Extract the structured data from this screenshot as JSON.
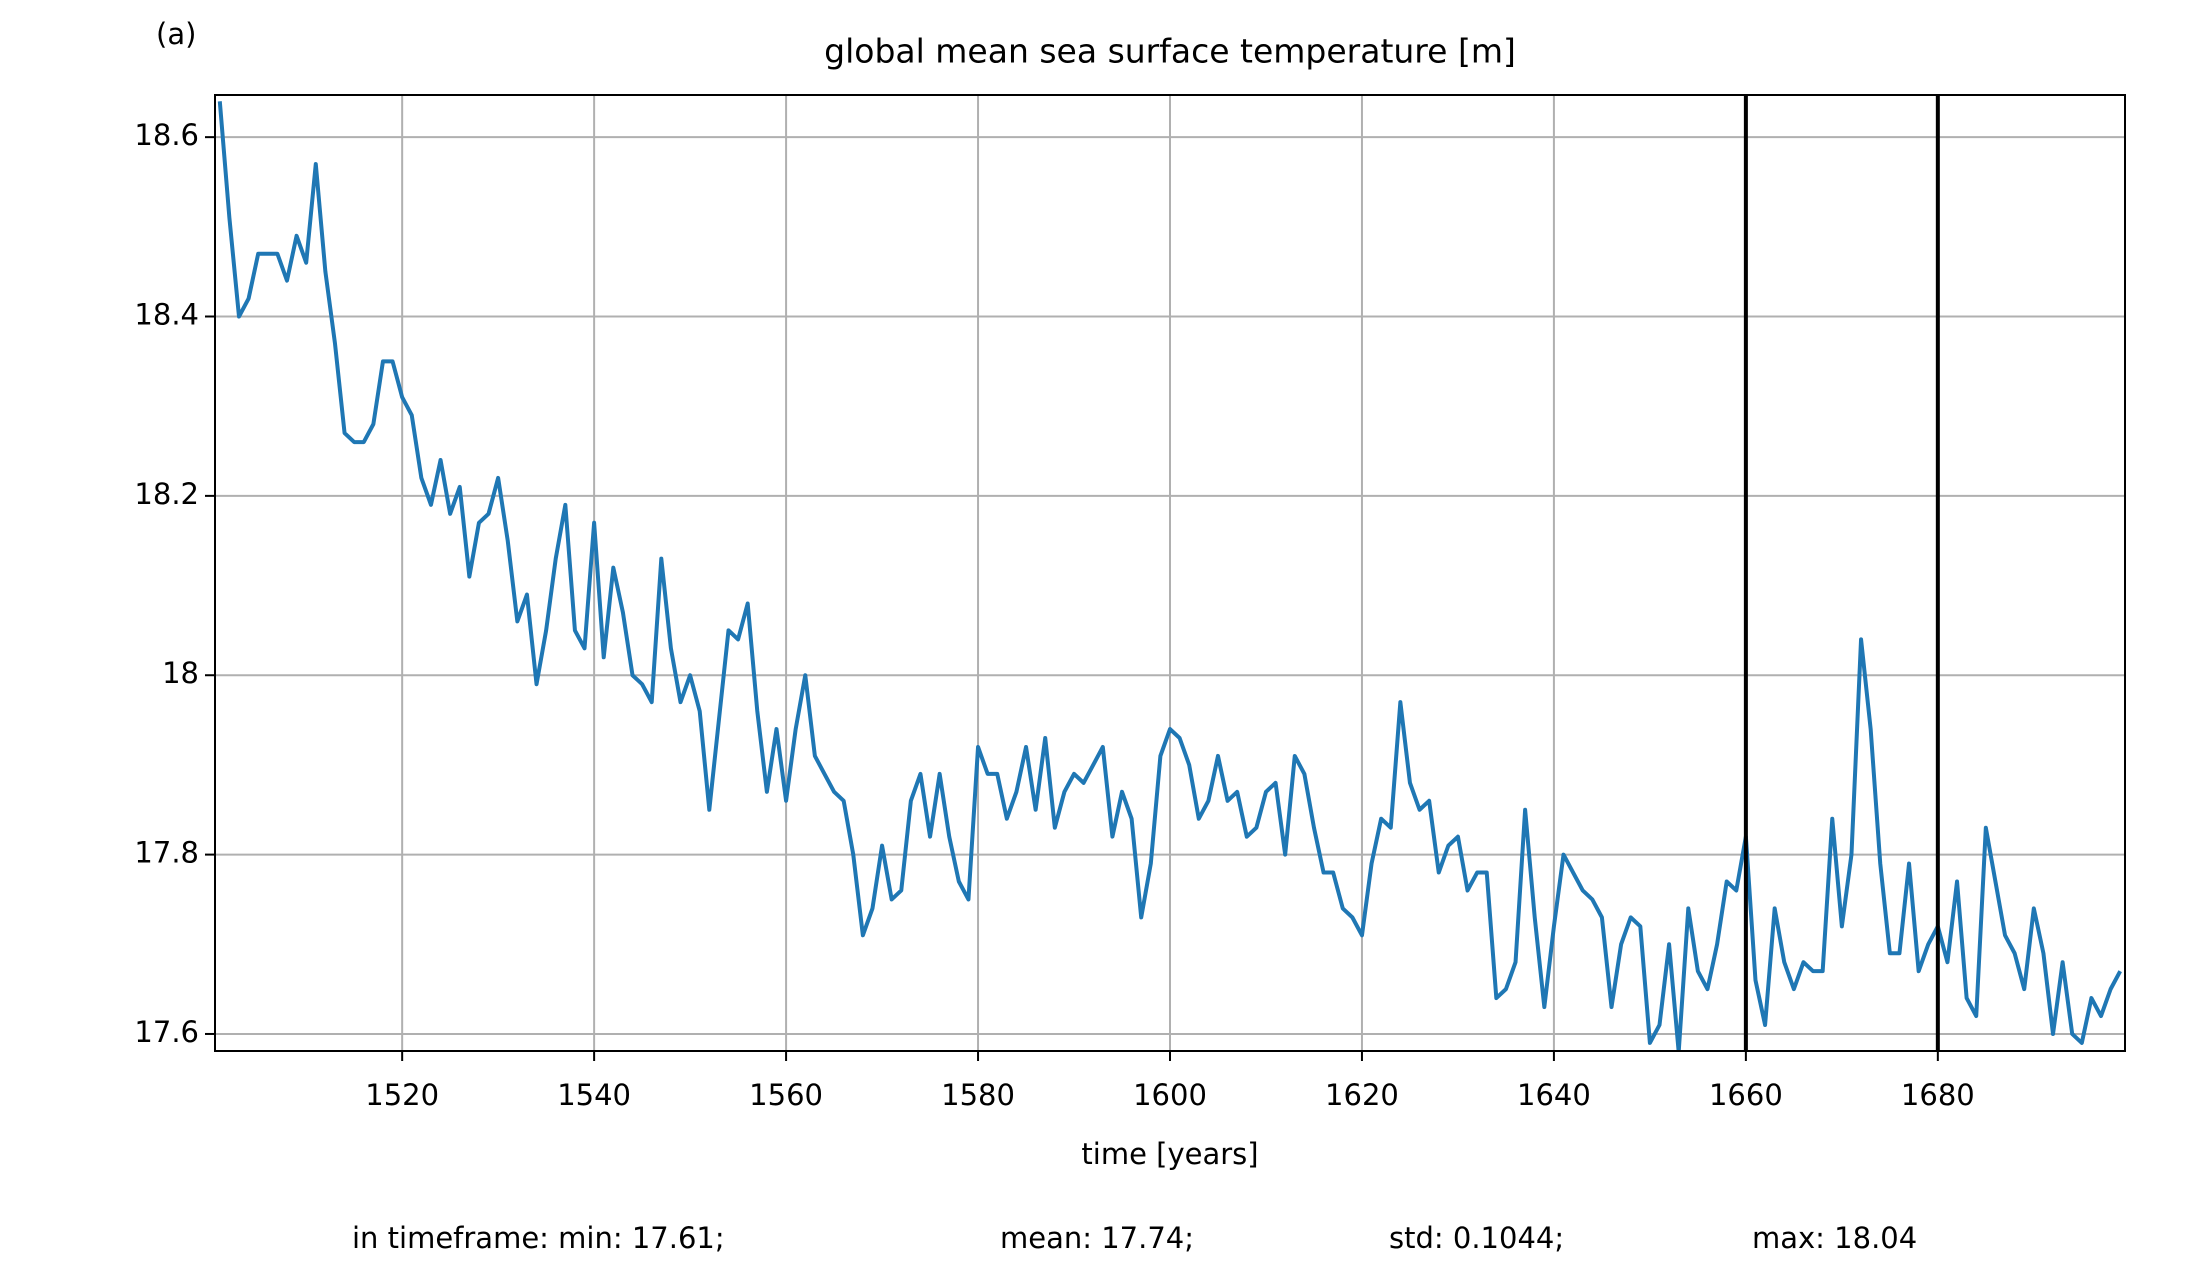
{
  "chart_data": {
    "type": "line",
    "panel_label": "(a)",
    "title": "global mean sea surface temperature [m]",
    "x_label": "time [years]",
    "stats": [
      "in timeframe: min: 17.61;",
      "mean: 17.74;",
      "std: 0.1044;",
      "max: 18.04"
    ],
    "x": [
      1501,
      1502,
      1503,
      1504,
      1505,
      1506,
      1507,
      1508,
      1509,
      1510,
      1511,
      1512,
      1513,
      1514,
      1515,
      1516,
      1517,
      1518,
      1519,
      1520,
      1521,
      1522,
      1523,
      1524,
      1525,
      1526,
      1527,
      1528,
      1529,
      1530,
      1531,
      1532,
      1533,
      1534,
      1535,
      1536,
      1537,
      1538,
      1539,
      1540,
      1541,
      1542,
      1543,
      1544,
      1545,
      1546,
      1547,
      1548,
      1549,
      1550,
      1551,
      1552,
      1553,
      1554,
      1555,
      1556,
      1557,
      1558,
      1559,
      1560,
      1561,
      1562,
      1563,
      1564,
      1565,
      1566,
      1567,
      1568,
      1569,
      1570,
      1571,
      1572,
      1573,
      1574,
      1575,
      1576,
      1577,
      1578,
      1579,
      1580,
      1581,
      1582,
      1583,
      1584,
      1585,
      1586,
      1587,
      1588,
      1589,
      1590,
      1591,
      1592,
      1593,
      1594,
      1595,
      1596,
      1597,
      1598,
      1599,
      1600,
      1601,
      1602,
      1603,
      1604,
      1605,
      1606,
      1607,
      1608,
      1609,
      1610,
      1611,
      1612,
      1613,
      1614,
      1615,
      1616,
      1617,
      1618,
      1619,
      1620,
      1621,
      1622,
      1623,
      1624,
      1625,
      1626,
      1627,
      1628,
      1629,
      1630,
      1631,
      1632,
      1633,
      1634,
      1635,
      1636,
      1637,
      1638,
      1639,
      1640,
      1641,
      1642,
      1643,
      1644,
      1645,
      1646,
      1647,
      1648,
      1649,
      1650,
      1651,
      1652,
      1653,
      1654,
      1655,
      1656,
      1657,
      1658,
      1659,
      1660,
      1661,
      1662,
      1663,
      1664,
      1665,
      1666,
      1667,
      1668,
      1669,
      1670,
      1671,
      1672,
      1673,
      1674,
      1675,
      1676,
      1677,
      1678,
      1679,
      1680,
      1681,
      1682,
      1683,
      1684,
      1685,
      1686,
      1687,
      1688,
      1689,
      1690,
      1691,
      1692,
      1693,
      1694,
      1695,
      1696,
      1697,
      1698,
      1699
    ],
    "series": [
      {
        "name": "global mean sea surface temperature",
        "color": "#1f77b4",
        "values": [
          18.64,
          18.51,
          18.4,
          18.42,
          18.47,
          18.47,
          18.47,
          18.44,
          18.49,
          18.46,
          18.57,
          18.45,
          18.37,
          18.27,
          18.26,
          18.26,
          18.28,
          18.35,
          18.35,
          18.31,
          18.29,
          18.22,
          18.19,
          18.24,
          18.18,
          18.21,
          18.11,
          18.17,
          18.18,
          18.22,
          18.15,
          18.06,
          18.09,
          17.99,
          18.05,
          18.13,
          18.19,
          18.05,
          18.03,
          18.17,
          18.02,
          18.12,
          18.07,
          18.0,
          17.99,
          17.97,
          18.13,
          18.03,
          17.97,
          18.0,
          17.96,
          17.85,
          17.95,
          18.05,
          18.04,
          18.08,
          17.96,
          17.87,
          17.94,
          17.86,
          17.94,
          18.0,
          17.91,
          17.89,
          17.87,
          17.86,
          17.8,
          17.71,
          17.74,
          17.81,
          17.75,
          17.76,
          17.86,
          17.89,
          17.82,
          17.89,
          17.82,
          17.77,
          17.75,
          17.92,
          17.89,
          17.89,
          17.84,
          17.87,
          17.92,
          17.85,
          17.93,
          17.83,
          17.87,
          17.89,
          17.88,
          17.9,
          17.92,
          17.82,
          17.87,
          17.84,
          17.73,
          17.79,
          17.91,
          17.94,
          17.93,
          17.9,
          17.84,
          17.86,
          17.91,
          17.86,
          17.87,
          17.82,
          17.83,
          17.87,
          17.88,
          17.8,
          17.91,
          17.89,
          17.83,
          17.78,
          17.78,
          17.74,
          17.73,
          17.71,
          17.79,
          17.84,
          17.83,
          17.97,
          17.88,
          17.85,
          17.86,
          17.78,
          17.81,
          17.82,
          17.76,
          17.78,
          17.78,
          17.64,
          17.65,
          17.68,
          17.85,
          17.73,
          17.63,
          17.72,
          17.8,
          17.78,
          17.76,
          17.75,
          17.73,
          17.63,
          17.7,
          17.73,
          17.72,
          17.59,
          17.61,
          17.7,
          17.58,
          17.74,
          17.67,
          17.65,
          17.7,
          17.77,
          17.76,
          17.82,
          17.66,
          17.61,
          17.74,
          17.68,
          17.65,
          17.68,
          17.67,
          17.67,
          17.84,
          17.72,
          17.8,
          18.04,
          17.94,
          17.79,
          17.69,
          17.69,
          17.79,
          17.67,
          17.7,
          17.72,
          17.68,
          17.77,
          17.64,
          17.62,
          17.83,
          17.77,
          17.71,
          17.69,
          17.65,
          17.74,
          17.69,
          17.6,
          17.68,
          17.6,
          17.59,
          17.64,
          17.62,
          17.65,
          17.67
        ]
      }
    ],
    "vlines": [
      1660,
      1680
    ],
    "xlim": [
      1500.5,
      1699.5
    ],
    "xticks": [
      1520,
      1540,
      1560,
      1580,
      1600,
      1620,
      1640,
      1660,
      1680
    ],
    "ylim": [
      17.581,
      18.647
    ],
    "yticks": [
      17.6,
      17.8,
      18.0,
      18.2,
      18.4,
      18.6
    ],
    "grid": true
  }
}
